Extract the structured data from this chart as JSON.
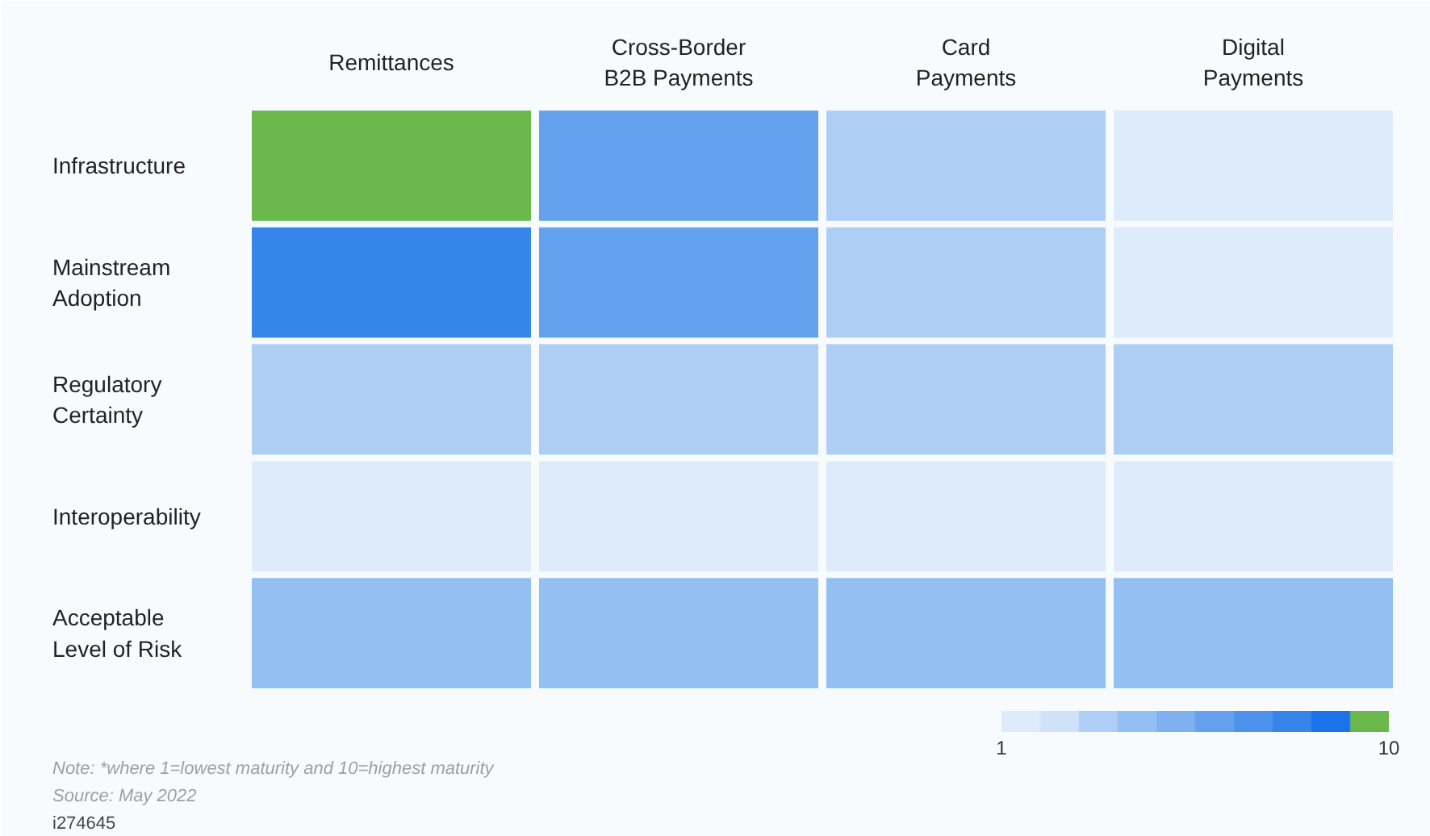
{
  "chart_data": {
    "type": "heatmap",
    "categories": [
      "Remittances",
      "Cross-Border\nB2B Payments",
      "Card\nPayments",
      "Digital\nPayments"
    ],
    "y_categories": [
      "Infrastructure",
      "Mainstream\nAdoption",
      "Regulatory\nCertainty",
      "Interoperability",
      "Acceptable\nLevel of Risk"
    ],
    "cells": [
      [
        10,
        6,
        3,
        1
      ],
      [
        8,
        6,
        3,
        1
      ],
      [
        3,
        3,
        3,
        3
      ],
      [
        1,
        1,
        1,
        1
      ],
      [
        4,
        4,
        4,
        4
      ]
    ],
    "colors": [
      "#ddebfa",
      "#cfe2f8",
      "#aecef5",
      "#94bff2",
      "#7fb0ef",
      "#65a2ee",
      "#4d92ec",
      "#3585ea",
      "#1a73e8",
      "#6bb84c"
    ],
    "clim": [
      1,
      10
    ],
    "cticks": [
      1,
      10
    ],
    "annotations": [
      "Note: *where 1=lowest maturity and 10=highest maturity",
      "Source: May 2022",
      "i274645"
    ]
  }
}
